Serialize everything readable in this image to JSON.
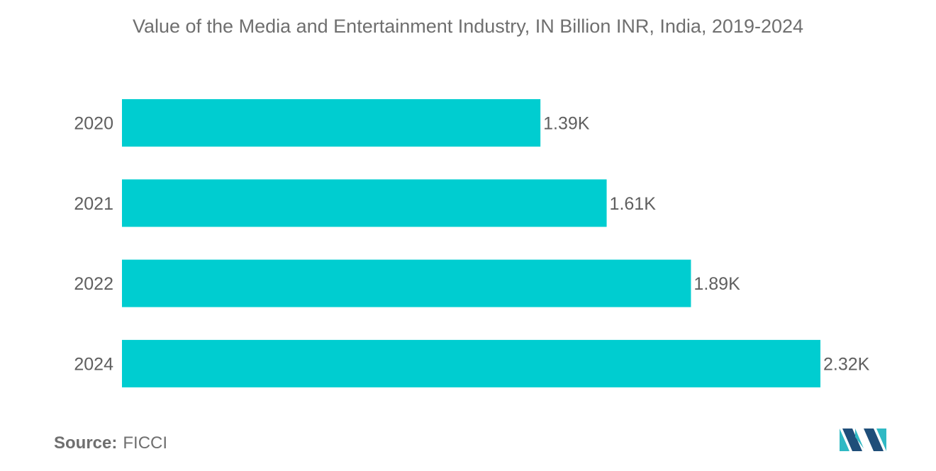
{
  "chart_data": {
    "type": "bar",
    "orientation": "horizontal",
    "title": "Value of the Media and Entertainment Industry, IN Billion INR, India, 2019-2024",
    "categories": [
      "2020",
      "2021",
      "2022",
      "2024"
    ],
    "values": [
      1390,
      1610,
      1890,
      2320
    ],
    "data_labels": [
      "1.39K",
      "1.61K",
      "1.89K",
      "2.32K"
    ],
    "xlim": [
      0,
      2320
    ],
    "grid": false,
    "bar_color": "#00cdd0"
  },
  "source": {
    "label": "Source:",
    "value": "FICCI"
  },
  "logo": {
    "icon": "mordor-intelligence-logo-icon"
  }
}
